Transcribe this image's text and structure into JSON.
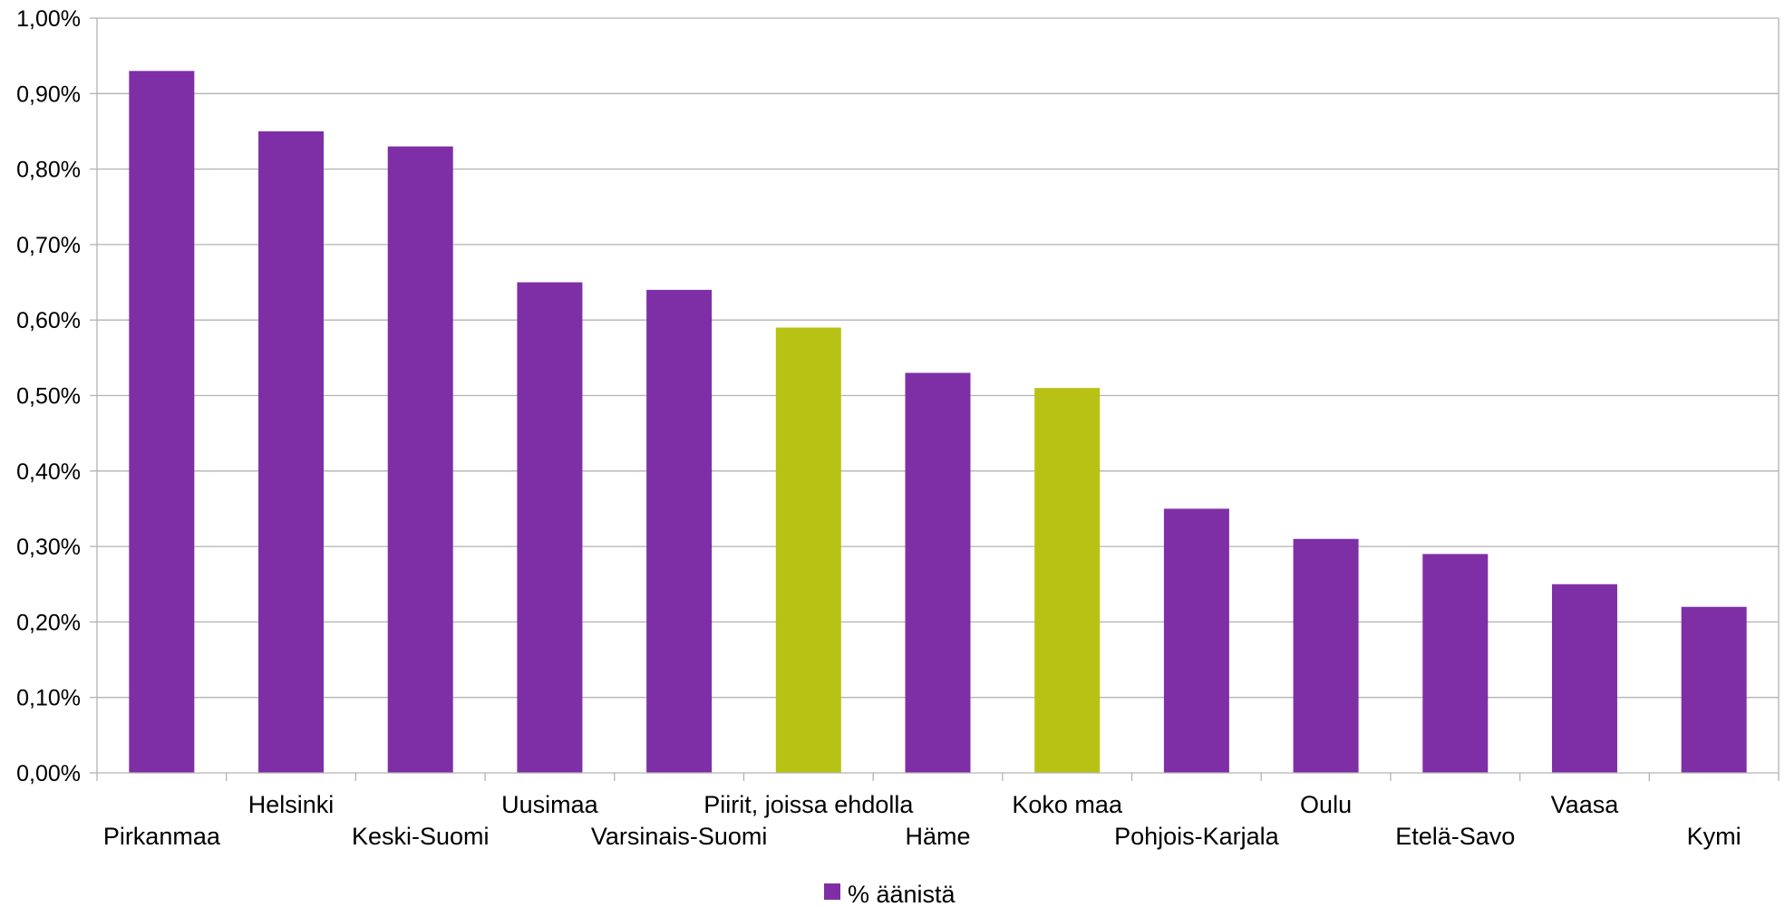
{
  "chart_data": {
    "type": "bar",
    "categories": [
      "Pirkanmaa",
      "Helsinki",
      "Keski-Suomi",
      "Uusimaa",
      "Varsinais-Suomi",
      "Piirit, joissa ehdolla",
      "Häme",
      "Koko maa",
      "Pohjois-Karjala",
      "Oulu",
      "Etelä-Savo",
      "Vaasa",
      "Kymi"
    ],
    "series": [
      {
        "name": "% äänistä",
        "values": [
          0.93,
          0.85,
          0.83,
          0.65,
          0.64,
          0.59,
          0.53,
          0.51,
          0.35,
          0.31,
          0.29,
          0.25,
          0.22
        ],
        "unit": "%"
      }
    ],
    "bar_colors": [
      "#7f2fa6",
      "#7f2fa6",
      "#7f2fa6",
      "#7f2fa6",
      "#7f2fa6",
      "#b7c214",
      "#7f2fa6",
      "#b7c214",
      "#7f2fa6",
      "#7f2fa6",
      "#7f2fa6",
      "#7f2fa6",
      "#7f2fa6"
    ],
    "ylim": [
      0,
      1.0
    ],
    "yticks": [
      "0,00%",
      "0,10%",
      "0,20%",
      "0,30%",
      "0,40%",
      "0,50%",
      "0,60%",
      "0,70%",
      "0,80%",
      "0,90%",
      "1,00%"
    ],
    "grid": true,
    "legend_position": "bottom-center",
    "title": "",
    "xlabel": "",
    "ylabel": ""
  },
  "legend": {
    "label": "% äänistä",
    "color": "#7f2fa6"
  }
}
